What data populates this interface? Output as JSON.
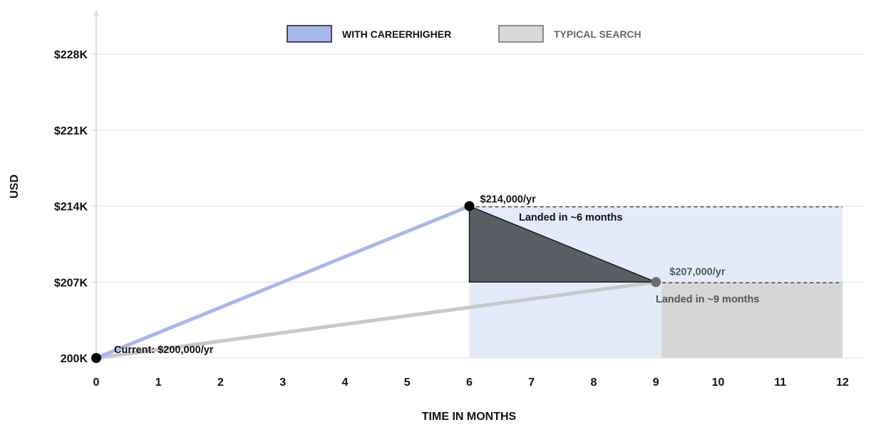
{
  "chart_data": {
    "type": "line",
    "title": "",
    "xlabel": "TIME IN MONTHS",
    "ylabel": "USD",
    "x_ticks": [
      0,
      1,
      2,
      3,
      4,
      5,
      6,
      7,
      8,
      9,
      10,
      11,
      12
    ],
    "xlim": [
      0,
      12
    ],
    "y_ticks": [
      {
        "value": 200000,
        "label": "200K"
      },
      {
        "value": 207000,
        "label": "$207K"
      },
      {
        "value": 214000,
        "label": "$214K"
      },
      {
        "value": 221000,
        "label": "$221K"
      },
      {
        "value": 228000,
        "label": "$228K"
      }
    ],
    "ylim": [
      200000,
      229000
    ],
    "grid": true,
    "legend_position": "top-center",
    "series": [
      {
        "name": "WITH CAREERHIGHER",
        "color": "#a7b8ee",
        "area_color": "#e3ebfb",
        "points": [
          {
            "x": 0,
            "y": 200000
          },
          {
            "x": 6,
            "y": 214000
          }
        ],
        "plateau_until": 12,
        "landing": {
          "x": 6,
          "y": 214000,
          "value_label": "$214,000/yr",
          "note": "Landed in ~6 months"
        }
      },
      {
        "name": "TYPICAL SEARCH",
        "color": "#c8c8c8",
        "area_color": "#d6d6d6",
        "points": [
          {
            "x": 0,
            "y": 200000
          },
          {
            "x": 9,
            "y": 207000
          }
        ],
        "plateau_until": 12,
        "landing": {
          "x": 9,
          "y": 207000,
          "value_label": "$207,000/yr",
          "note": "Landed in ~9 months"
        }
      }
    ],
    "start_point": {
      "x": 0,
      "y": 200000,
      "label": "Current: $200,000/yr"
    },
    "gap_triangle": {
      "vertices": [
        {
          "x": 6,
          "y": 214000
        },
        {
          "x": 6,
          "y": 207000
        },
        {
          "x": 9,
          "y": 207000
        }
      ],
      "color": "#5b5e65"
    }
  }
}
